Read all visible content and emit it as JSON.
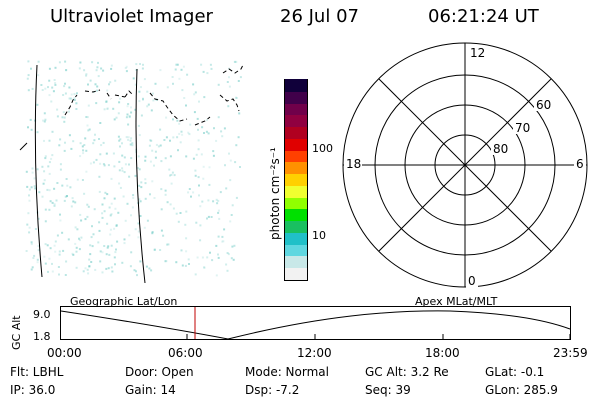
{
  "header": {
    "title": "Ultraviolet Imager",
    "date": "26 Jul 07",
    "time": "06:21:24 UT"
  },
  "colorbar": {
    "unit_label": "photon cm⁻²s⁻¹",
    "tick_labels": [
      "100",
      "10"
    ],
    "colors": [
      "#f2f2f2",
      "#c8e8e8",
      "#5fd7e0",
      "#20c0c8",
      "#19c060",
      "#00e000",
      "#90ff00",
      "#f0ff30",
      "#ffd000",
      "#ff9000",
      "#ff4000",
      "#e00000",
      "#b00020",
      "#900040",
      "#70004a",
      "#40004a",
      "#10003a"
    ]
  },
  "polar": {
    "lat_labels": [
      "60",
      "70",
      "80"
    ],
    "mlt_labels": {
      "top": "12",
      "left": "18",
      "right": "6",
      "bottom": "0"
    }
  },
  "altitude_plot": {
    "ylabel": "GC Alt",
    "yticks": [
      "9.0",
      "1.8"
    ],
    "left_title": "Geographic Lat/Lon",
    "right_title": "Apex MLat/MLT",
    "xticks": [
      "00:00",
      "06:00",
      "12:00",
      "18:00",
      "23:59"
    ],
    "current_time_fraction": 0.2647,
    "line_color": "#c00000"
  },
  "footer": {
    "row1": {
      "filter": "Flt: LBHL",
      "door": "Door: Open",
      "mode": "Mode: Normal",
      "gc_alt": "GC Alt: 3.2 Re",
      "glat": "GLat:  -0.1"
    },
    "row2": {
      "ip": "IP: 36.0",
      "gain": "Gain: 14",
      "dsp": "Dsp:   -7.2",
      "seq": "Seq: 39",
      "glon": "GLon: 285.9"
    }
  }
}
